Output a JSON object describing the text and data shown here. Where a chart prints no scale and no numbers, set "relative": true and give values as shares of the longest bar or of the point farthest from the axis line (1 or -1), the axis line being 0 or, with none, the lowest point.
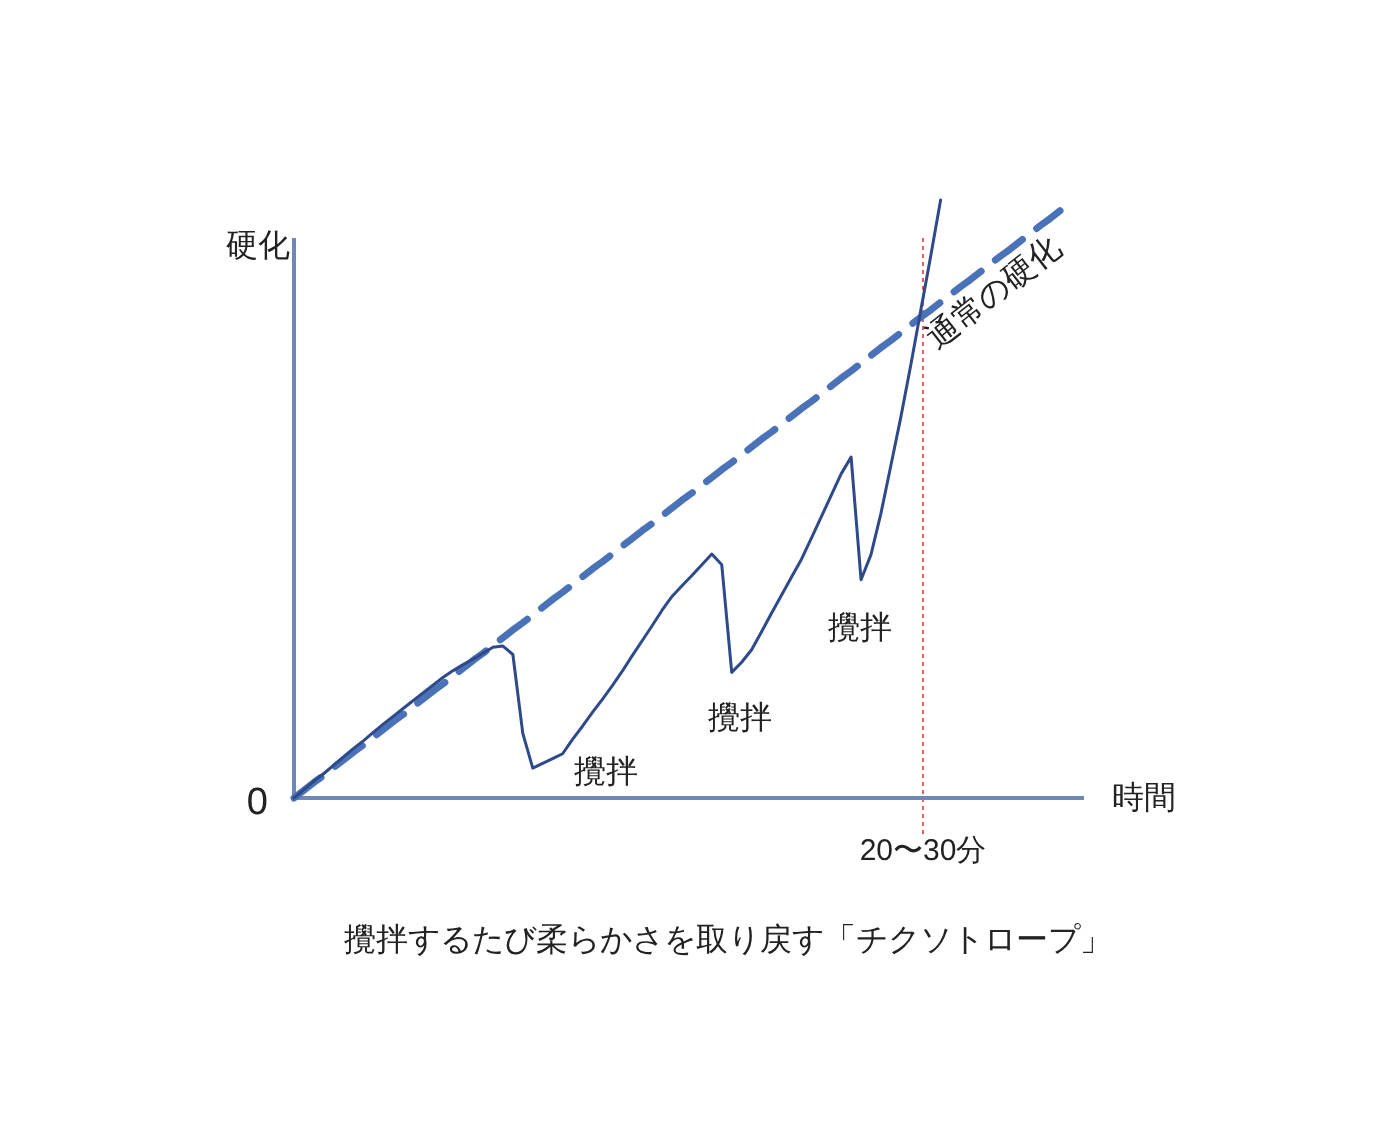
{
  "chart_data": {
    "type": "line",
    "relative": true,
    "xlabel": "時間",
    "ylabel": "硬化",
    "legend": false,
    "categories": [
      null,
      null,
      null,
      null,
      null,
      null,
      null,
      null,
      null,
      null,
      null,
      null,
      null,
      null,
      null,
      null,
      null,
      null,
      null,
      null,
      null,
      null,
      null,
      null,
      null,
      null,
      null,
      null,
      null,
      null,
      null,
      null,
      null,
      null,
      null,
      null,
      null,
      null,
      null,
      null,
      null,
      null,
      null,
      null,
      null,
      null,
      null,
      null,
      null,
      null,
      null,
      null,
      null,
      null,
      null,
      null,
      null,
      null,
      null,
      null,
      null,
      null,
      null,
      null,
      null,
      null,
      null,
      null,
      null,
      null,
      null,
      null,
      null,
      null,
      null,
      null,
      null,
      null
    ],
    "series": [
      {
        "name": "通常の硬化",
        "color": "#4a72b8",
        "line_style": "dashed",
        "values": [
          0,
          0.013,
          0.026,
          0.038,
          0.051,
          0.064,
          0.077,
          0.089,
          0.102,
          0.115,
          0.128,
          0.14,
          0.153,
          0.166,
          0.179,
          0.191,
          0.204,
          0.217,
          0.23,
          0.242,
          0.255,
          0.268,
          0.281,
          0.293,
          0.306,
          0.319,
          0.332,
          0.344,
          0.357,
          0.37,
          0.383,
          0.395,
          0.408,
          0.421,
          0.434,
          0.447,
          0.459,
          0.472,
          0.485,
          0.498,
          0.51,
          0.523,
          0.536,
          0.549,
          0.561,
          0.574,
          0.587,
          0.6,
          0.612,
          0.625,
          0.638,
          0.651,
          0.663,
          0.676,
          0.689,
          0.702,
          0.714,
          0.727,
          0.74,
          0.753,
          0.765,
          0.778,
          0.791,
          0.804,
          0.816,
          0.829,
          0.842,
          0.855,
          0.867,
          0.88,
          0.893,
          0.906,
          0.918,
          0.931,
          0.944,
          0.957,
          0.969,
          0.982
        ]
      },
      {
        "color": "#2e4a8a",
        "line_style": "solid",
        "values": [
          0,
          0.014,
          0.028,
          0.041,
          0.055,
          0.069,
          0.083,
          0.096,
          0.11,
          0.124,
          0.137,
          0.15,
          0.163,
          0.176,
          0.189,
          0.202,
          0.213,
          0.223,
          0.232,
          0.242,
          0.252,
          0.254,
          0.24,
          0.108,
          0.05,
          0.058,
          0.066,
          0.074,
          0.098,
          0.12,
          0.143,
          0.165,
          0.188,
          0.212,
          0.238,
          0.263,
          0.288,
          0.314,
          0.337,
          0.355,
          0.372,
          0.39,
          0.408,
          0.39,
          0.21,
          0.227,
          0.248,
          0.278,
          0.309,
          0.339,
          0.369,
          0.399,
          0.434,
          0.47,
          0.506,
          0.542,
          0.57,
          0.365,
          0.407,
          0.476,
          0.556,
          0.637,
          0.724,
          0.815,
          0.906,
          1.0,
          null,
          null,
          null,
          null,
          null,
          null,
          null,
          null,
          null,
          null,
          null,
          null
        ]
      }
    ],
    "annotations": [
      "0",
      "攪拌",
      "攪拌",
      "攪拌",
      "攪拌するたび柔らかさを取り戻す「チクソトロープ」",
      "20〜30分"
    ]
  }
}
